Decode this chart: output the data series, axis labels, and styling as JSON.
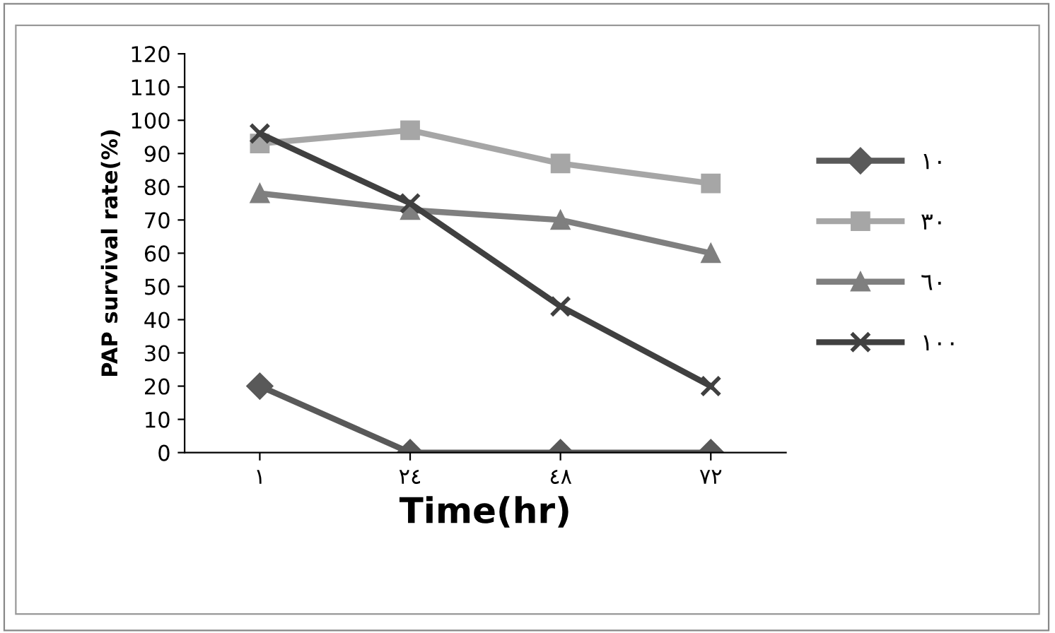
{
  "chart_data": {
    "type": "line",
    "xlabel": "Time(hr)",
    "ylabel": "PAP survival rate(%)",
    "categories": [
      "١",
      "٢٤",
      "٤٨",
      "٧٢"
    ],
    "series": [
      {
        "name": "١٠",
        "color": "#595959",
        "marker": "diamond",
        "values": [
          20,
          0,
          0,
          0
        ]
      },
      {
        "name": "٣٠",
        "color": "#a6a6a6",
        "marker": "square",
        "values": [
          93,
          97,
          87,
          81
        ]
      },
      {
        "name": "٦٠",
        "color": "#7f7f7f",
        "marker": "triangle",
        "values": [
          78,
          73,
          70,
          60
        ]
      },
      {
        "name": "١٠٠",
        "color": "#404040",
        "marker": "cross",
        "values": [
          96,
          75,
          44,
          20
        ]
      }
    ],
    "ylim": [
      0,
      120
    ],
    "yticks": [
      0,
      10,
      20,
      30,
      40,
      50,
      60,
      70,
      80,
      90,
      100,
      110,
      120
    ],
    "grid": false,
    "legend": "right",
    "line_style": "solid"
  }
}
